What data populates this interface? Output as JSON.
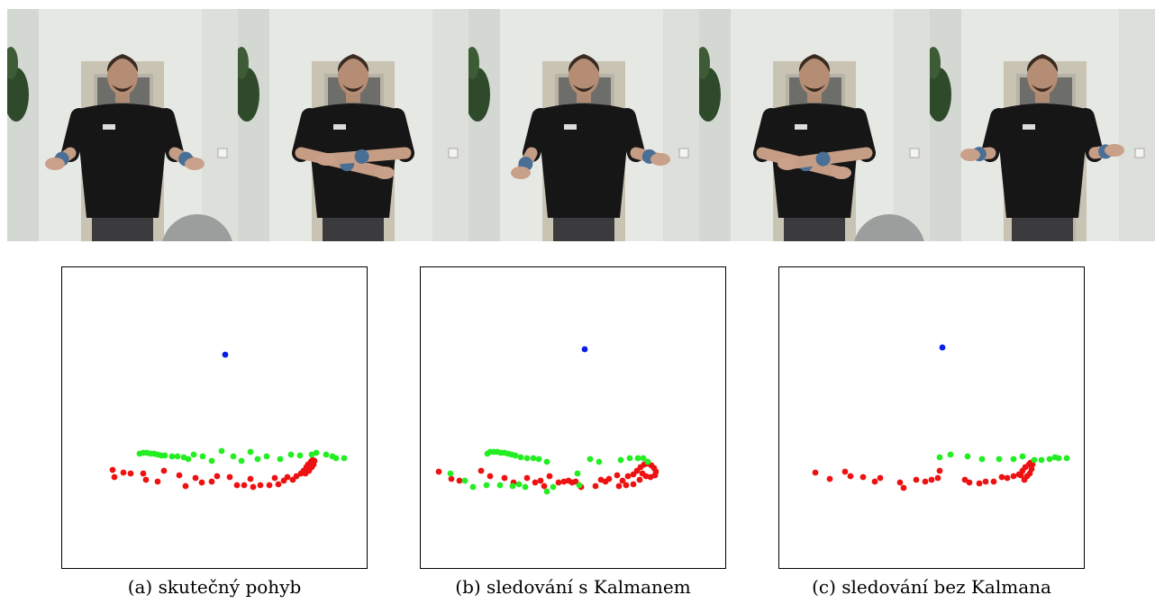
{
  "figure": {
    "photos": {
      "count": 5,
      "description_icon": "person-frame-photo"
    },
    "colors": {
      "blue": "#0a1ee6",
      "green": "#22ee22",
      "red": "#ee1111"
    },
    "panels": [
      {
        "caption": "(a) skutečný pohyb",
        "points": {
          "blue": [
            [
              181,
              97
            ]
          ],
          "green": [
            [
              86,
              207
            ],
            [
              90,
              206
            ],
            [
              94,
              206
            ],
            [
              98,
              207
            ],
            [
              102,
              207
            ],
            [
              106,
              208
            ],
            [
              110,
              209
            ],
            [
              114,
              209
            ],
            [
              122,
              210
            ],
            [
              128,
              210
            ],
            [
              135,
              211
            ],
            [
              140,
              213
            ],
            [
              146,
              208
            ],
            [
              156,
              210
            ],
            [
              166,
              215
            ],
            [
              177,
              204
            ],
            [
              190,
              210
            ],
            [
              199,
              215
            ],
            [
              209,
              205
            ],
            [
              217,
              213
            ],
            [
              227,
              210
            ],
            [
              242,
              213
            ],
            [
              254,
              208
            ],
            [
              264,
              209
            ],
            [
              277,
              208
            ],
            [
              282,
              206
            ],
            [
              293,
              208
            ],
            [
              300,
              210
            ],
            [
              304,
              212
            ],
            [
              313,
              212
            ]
          ],
          "red": [
            [
              56,
              225
            ],
            [
              58,
              233
            ],
            [
              68,
              228
            ],
            [
              76,
              229
            ],
            [
              90,
              229
            ],
            [
              93,
              236
            ],
            [
              106,
              238
            ],
            [
              113,
              226
            ],
            [
              130,
              231
            ],
            [
              137,
              243
            ],
            [
              148,
              234
            ],
            [
              155,
              239
            ],
            [
              166,
              238
            ],
            [
              172,
              232
            ],
            [
              186,
              233
            ],
            [
              194,
              242
            ],
            [
              202,
              242
            ],
            [
              209,
              235
            ],
            [
              212,
              244
            ],
            [
              220,
              242
            ],
            [
              230,
              242
            ],
            [
              236,
              234
            ],
            [
              240,
              241
            ],
            [
              246,
              237
            ],
            [
              250,
              233
            ],
            [
              256,
              236
            ],
            [
              260,
              232
            ],
            [
              265,
              229
            ],
            [
              268,
              226
            ],
            [
              271,
              222
            ],
            [
              273,
              219
            ],
            [
              276,
              216
            ],
            [
              278,
              214
            ],
            [
              280,
              215
            ],
            [
              279,
              219
            ],
            [
              277,
              222
            ],
            [
              274,
              226
            ],
            [
              270,
              229
            ]
          ]
        }
      },
      {
        "caption": "(b) sledování s Kalmanem",
        "points": {
          "blue": [
            [
              182,
              91
            ]
          ],
          "green": [
            [
              74,
              207
            ],
            [
              77,
              205
            ],
            [
              81,
              205
            ],
            [
              85,
              205
            ],
            [
              89,
              206
            ],
            [
              93,
              206
            ],
            [
              97,
              207
            ],
            [
              101,
              208
            ],
            [
              105,
              209
            ],
            [
              111,
              211
            ],
            [
              118,
              212
            ],
            [
              125,
              212
            ],
            [
              131,
              213
            ],
            [
              140,
              216
            ],
            [
              33,
              229
            ],
            [
              49,
              237
            ],
            [
              58,
              244
            ],
            [
              73,
              242
            ],
            [
              88,
              242
            ],
            [
              102,
              243
            ],
            [
              109,
              241
            ],
            [
              116,
              244
            ],
            [
              140,
              249
            ],
            [
              147,
              244
            ],
            [
              174,
              229
            ],
            [
              176,
              242
            ],
            [
              188,
              213
            ],
            [
              198,
              216
            ],
            [
              222,
              214
            ],
            [
              232,
              212
            ],
            [
              241,
              212
            ],
            [
              247,
              212
            ],
            [
              252,
              216
            ]
          ],
          "red": [
            [
              20,
              227
            ],
            [
              34,
              235
            ],
            [
              43,
              237
            ],
            [
              67,
              226
            ],
            [
              77,
              232
            ],
            [
              93,
              234
            ],
            [
              103,
              239
            ],
            [
              118,
              234
            ],
            [
              127,
              239
            ],
            [
              133,
              237
            ],
            [
              137,
              243
            ],
            [
              143,
              232
            ],
            [
              153,
              239
            ],
            [
              159,
              238
            ],
            [
              164,
              237
            ],
            [
              168,
              239
            ],
            [
              172,
              238
            ],
            [
              178,
              244
            ],
            [
              194,
              243
            ],
            [
              200,
              236
            ],
            [
              205,
              238
            ],
            [
              209,
              235
            ],
            [
              218,
              231
            ],
            [
              224,
              237
            ],
            [
              230,
              232
            ],
            [
              236,
              230
            ],
            [
              240,
              226
            ],
            [
              244,
              222
            ],
            [
              248,
              219
            ],
            [
              252,
              218
            ],
            [
              256,
              220
            ],
            [
              259,
              223
            ],
            [
              261,
              227
            ],
            [
              260,
              231
            ],
            [
              255,
              233
            ],
            [
              250,
              232
            ],
            [
              246,
              229
            ],
            [
              243,
              236
            ],
            [
              236,
              241
            ],
            [
              228,
              242
            ],
            [
              220,
              243
            ]
          ]
        }
      },
      {
        "caption": "(c) sledování bez Kalmana",
        "points": {
          "blue": [
            [
              181,
              89
            ]
          ],
          "green": [
            [
              178,
              211
            ],
            [
              190,
              208
            ],
            [
              209,
              210
            ],
            [
              225,
              213
            ],
            [
              244,
              213
            ],
            [
              260,
              213
            ],
            [
              270,
              210
            ],
            [
              283,
              214
            ],
            [
              291,
              214
            ],
            [
              300,
              213
            ],
            [
              306,
              211
            ],
            [
              310,
              212
            ],
            [
              319,
              212
            ]
          ],
          "red": [
            [
              40,
              228
            ],
            [
              56,
              235
            ],
            [
              73,
              227
            ],
            [
              79,
              232
            ],
            [
              93,
              233
            ],
            [
              106,
              238
            ],
            [
              112,
              234
            ],
            [
              134,
              239
            ],
            [
              138,
              245
            ],
            [
              152,
              236
            ],
            [
              162,
              238
            ],
            [
              169,
              236
            ],
            [
              176,
              234
            ],
            [
              178,
              226
            ],
            [
              206,
              236
            ],
            [
              211,
              239
            ],
            [
              222,
              240
            ],
            [
              229,
              238
            ],
            [
              238,
              238
            ],
            [
              247,
              233
            ],
            [
              253,
              234
            ],
            [
              260,
              232
            ],
            [
              266,
              230
            ],
            [
              270,
              226
            ],
            [
              273,
              222
            ],
            [
              277,
              219
            ],
            [
              279,
              217
            ],
            [
              281,
              219
            ],
            [
              280,
              224
            ],
            [
              278,
              229
            ],
            [
              275,
              232
            ],
            [
              272,
              236
            ],
            [
              268,
              231
            ]
          ]
        }
      }
    ]
  }
}
